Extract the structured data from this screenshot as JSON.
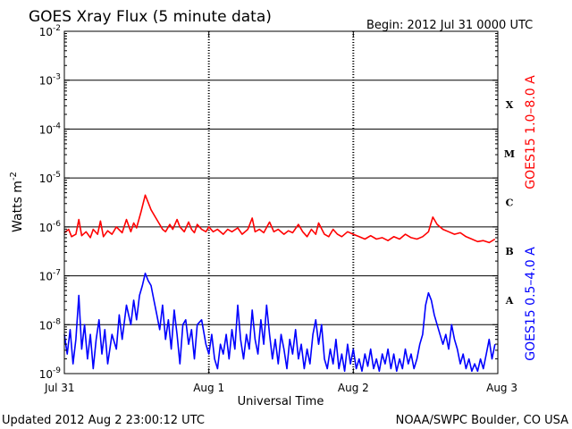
{
  "chart_data": {
    "type": "line",
    "title": "GOES Xray Flux (5 minute data)",
    "begin_label": "Begin:  2012 Jul 31 0000 UTC",
    "xlabel": "Universal Time",
    "ylabel_base": "Watts m",
    "ylabel_exp": "-2",
    "x_range_days": [
      0,
      3
    ],
    "x_ticks": [
      {
        "label": "Jul 31",
        "day": 0
      },
      {
        "label": "Aug 1",
        "day": 1
      },
      {
        "label": "Aug 2",
        "day": 2
      },
      {
        "label": "Aug 3",
        "day": 3
      }
    ],
    "y_scale": "log",
    "ylim_exponent": [
      -9,
      -2
    ],
    "y_ticks": [
      {
        "base": "10",
        "exp": "-2",
        "value": -2
      },
      {
        "base": "10",
        "exp": "-3",
        "value": -3
      },
      {
        "base": "10",
        "exp": "-4",
        "value": -4
      },
      {
        "base": "10",
        "exp": "-5",
        "value": -5
      },
      {
        "base": "10",
        "exp": "-6",
        "value": -6
      },
      {
        "base": "10",
        "exp": "-7",
        "value": -7
      },
      {
        "base": "10",
        "exp": "-8",
        "value": -8
      },
      {
        "base": "10",
        "exp": "-9",
        "value": -9
      }
    ],
    "flare_classes": [
      {
        "label": "X",
        "center": -3.5
      },
      {
        "label": "M",
        "center": -4.5
      },
      {
        "label": "C",
        "center": -5.5
      },
      {
        "label": "B",
        "center": -6.5
      },
      {
        "label": "A",
        "center": -7.5
      }
    ],
    "series": [
      {
        "name": "GOES15 1.0–8.0 A",
        "color": "#ff0000",
        "points": [
          [
            0.0,
            -6.12
          ],
          [
            0.03,
            -6.05
          ],
          [
            0.05,
            -6.2
          ],
          [
            0.08,
            -6.15
          ],
          [
            0.1,
            -5.85
          ],
          [
            0.12,
            -6.18
          ],
          [
            0.15,
            -6.1
          ],
          [
            0.18,
            -6.22
          ],
          [
            0.2,
            -6.05
          ],
          [
            0.23,
            -6.15
          ],
          [
            0.25,
            -5.88
          ],
          [
            0.27,
            -6.2
          ],
          [
            0.3,
            -6.08
          ],
          [
            0.33,
            -6.15
          ],
          [
            0.36,
            -6.0
          ],
          [
            0.4,
            -6.12
          ],
          [
            0.43,
            -5.85
          ],
          [
            0.46,
            -6.1
          ],
          [
            0.48,
            -5.92
          ],
          [
            0.5,
            -6.02
          ],
          [
            0.53,
            -5.7
          ],
          [
            0.56,
            -5.35
          ],
          [
            0.58,
            -5.5
          ],
          [
            0.6,
            -5.65
          ],
          [
            0.63,
            -5.8
          ],
          [
            0.66,
            -5.95
          ],
          [
            0.68,
            -6.05
          ],
          [
            0.7,
            -6.1
          ],
          [
            0.73,
            -5.95
          ],
          [
            0.75,
            -6.05
          ],
          [
            0.78,
            -5.85
          ],
          [
            0.8,
            -6.0
          ],
          [
            0.83,
            -6.1
          ],
          [
            0.86,
            -5.9
          ],
          [
            0.88,
            -6.05
          ],
          [
            0.9,
            -6.12
          ],
          [
            0.92,
            -5.95
          ],
          [
            0.95,
            -6.05
          ],
          [
            0.98,
            -6.1
          ],
          [
            1.0,
            -6.0
          ],
          [
            1.03,
            -6.1
          ],
          [
            1.06,
            -6.05
          ],
          [
            1.1,
            -6.15
          ],
          [
            1.13,
            -6.05
          ],
          [
            1.16,
            -6.1
          ],
          [
            1.2,
            -6.02
          ],
          [
            1.23,
            -6.15
          ],
          [
            1.27,
            -6.05
          ],
          [
            1.3,
            -5.82
          ],
          [
            1.32,
            -6.1
          ],
          [
            1.35,
            -6.05
          ],
          [
            1.38,
            -6.12
          ],
          [
            1.42,
            -5.9
          ],
          [
            1.45,
            -6.1
          ],
          [
            1.48,
            -6.05
          ],
          [
            1.52,
            -6.15
          ],
          [
            1.55,
            -6.08
          ],
          [
            1.58,
            -6.12
          ],
          [
            1.62,
            -5.95
          ],
          [
            1.65,
            -6.1
          ],
          [
            1.68,
            -6.2
          ],
          [
            1.71,
            -6.05
          ],
          [
            1.74,
            -6.15
          ],
          [
            1.76,
            -5.92
          ],
          [
            1.8,
            -6.15
          ],
          [
            1.83,
            -6.2
          ],
          [
            1.86,
            -6.05
          ],
          [
            1.89,
            -6.15
          ],
          [
            1.92,
            -6.2
          ],
          [
            1.96,
            -6.1
          ],
          [
            2.0,
            -6.15
          ],
          [
            2.04,
            -6.2
          ],
          [
            2.08,
            -6.25
          ],
          [
            2.12,
            -6.18
          ],
          [
            2.16,
            -6.25
          ],
          [
            2.2,
            -6.22
          ],
          [
            2.24,
            -6.28
          ],
          [
            2.28,
            -6.2
          ],
          [
            2.32,
            -6.25
          ],
          [
            2.36,
            -6.15
          ],
          [
            2.4,
            -6.22
          ],
          [
            2.44,
            -6.25
          ],
          [
            2.48,
            -6.2
          ],
          [
            2.52,
            -6.1
          ],
          [
            2.55,
            -5.8
          ],
          [
            2.58,
            -5.95
          ],
          [
            2.62,
            -6.05
          ],
          [
            2.66,
            -6.1
          ],
          [
            2.7,
            -6.15
          ],
          [
            2.74,
            -6.12
          ],
          [
            2.78,
            -6.2
          ],
          [
            2.82,
            -6.25
          ],
          [
            2.86,
            -6.3
          ],
          [
            2.9,
            -6.28
          ],
          [
            2.94,
            -6.32
          ],
          [
            2.98,
            -6.25
          ]
        ]
      },
      {
        "name": "GOES15 0.5–4.0 A",
        "color": "#0000ff",
        "points": [
          [
            0.0,
            -8.2
          ],
          [
            0.02,
            -8.6
          ],
          [
            0.04,
            -8.1
          ],
          [
            0.06,
            -8.8
          ],
          [
            0.08,
            -8.3
          ],
          [
            0.1,
            -7.4
          ],
          [
            0.12,
            -8.5
          ],
          [
            0.14,
            -8.0
          ],
          [
            0.16,
            -8.7
          ],
          [
            0.18,
            -8.2
          ],
          [
            0.2,
            -8.9
          ],
          [
            0.22,
            -8.3
          ],
          [
            0.24,
            -7.9
          ],
          [
            0.26,
            -8.6
          ],
          [
            0.28,
            -8.1
          ],
          [
            0.3,
            -8.8
          ],
          [
            0.33,
            -8.2
          ],
          [
            0.36,
            -8.5
          ],
          [
            0.38,
            -7.8
          ],
          [
            0.4,
            -8.3
          ],
          [
            0.43,
            -7.6
          ],
          [
            0.46,
            -8.0
          ],
          [
            0.48,
            -7.5
          ],
          [
            0.5,
            -7.9
          ],
          [
            0.52,
            -7.4
          ],
          [
            0.54,
            -7.2
          ],
          [
            0.56,
            -6.95
          ],
          [
            0.58,
            -7.1
          ],
          [
            0.6,
            -7.2
          ],
          [
            0.62,
            -7.5
          ],
          [
            0.64,
            -7.8
          ],
          [
            0.66,
            -8.1
          ],
          [
            0.68,
            -7.6
          ],
          [
            0.7,
            -8.3
          ],
          [
            0.72,
            -7.9
          ],
          [
            0.74,
            -8.5
          ],
          [
            0.76,
            -7.7
          ],
          [
            0.78,
            -8.2
          ],
          [
            0.8,
            -8.8
          ],
          [
            0.82,
            -8.0
          ],
          [
            0.84,
            -7.9
          ],
          [
            0.86,
            -8.4
          ],
          [
            0.88,
            -8.1
          ],
          [
            0.9,
            -8.7
          ],
          [
            0.92,
            -8.0
          ],
          [
            0.95,
            -7.9
          ],
          [
            0.98,
            -8.4
          ],
          [
            1.0,
            -8.6
          ],
          [
            1.02,
            -8.2
          ],
          [
            1.04,
            -8.7
          ],
          [
            1.06,
            -8.9
          ],
          [
            1.08,
            -8.4
          ],
          [
            1.1,
            -8.6
          ],
          [
            1.12,
            -8.2
          ],
          [
            1.14,
            -8.7
          ],
          [
            1.16,
            -8.1
          ],
          [
            1.18,
            -8.5
          ],
          [
            1.2,
            -7.6
          ],
          [
            1.22,
            -8.3
          ],
          [
            1.24,
            -8.7
          ],
          [
            1.26,
            -8.2
          ],
          [
            1.28,
            -8.5
          ],
          [
            1.3,
            -7.7
          ],
          [
            1.32,
            -8.3
          ],
          [
            1.34,
            -8.6
          ],
          [
            1.36,
            -7.9
          ],
          [
            1.38,
            -8.4
          ],
          [
            1.4,
            -7.6
          ],
          [
            1.42,
            -8.2
          ],
          [
            1.44,
            -8.7
          ],
          [
            1.46,
            -8.3
          ],
          [
            1.48,
            -8.8
          ],
          [
            1.5,
            -8.2
          ],
          [
            1.52,
            -8.5
          ],
          [
            1.54,
            -8.9
          ],
          [
            1.56,
            -8.3
          ],
          [
            1.58,
            -8.6
          ],
          [
            1.6,
            -8.1
          ],
          [
            1.62,
            -8.7
          ],
          [
            1.64,
            -8.4
          ],
          [
            1.66,
            -8.9
          ],
          [
            1.68,
            -8.5
          ],
          [
            1.7,
            -8.8
          ],
          [
            1.72,
            -8.2
          ],
          [
            1.74,
            -7.9
          ],
          [
            1.76,
            -8.4
          ],
          [
            1.78,
            -8.0
          ],
          [
            1.8,
            -8.7
          ],
          [
            1.82,
            -8.9
          ],
          [
            1.84,
            -8.5
          ],
          [
            1.86,
            -8.8
          ],
          [
            1.88,
            -8.3
          ],
          [
            1.9,
            -8.9
          ],
          [
            1.92,
            -8.6
          ],
          [
            1.94,
            -8.95
          ],
          [
            1.96,
            -8.4
          ],
          [
            1.98,
            -8.8
          ],
          [
            2.0,
            -8.5
          ],
          [
            2.02,
            -8.9
          ],
          [
            2.04,
            -8.7
          ],
          [
            2.06,
            -8.95
          ],
          [
            2.08,
            -8.6
          ],
          [
            2.1,
            -8.85
          ],
          [
            2.12,
            -8.5
          ],
          [
            2.14,
            -8.9
          ],
          [
            2.16,
            -8.7
          ],
          [
            2.18,
            -8.95
          ],
          [
            2.2,
            -8.6
          ],
          [
            2.22,
            -8.8
          ],
          [
            2.24,
            -8.5
          ],
          [
            2.26,
            -8.9
          ],
          [
            2.28,
            -8.6
          ],
          [
            2.3,
            -8.95
          ],
          [
            2.32,
            -8.7
          ],
          [
            2.34,
            -8.9
          ],
          [
            2.36,
            -8.5
          ],
          [
            2.38,
            -8.8
          ],
          [
            2.4,
            -8.6
          ],
          [
            2.42,
            -8.9
          ],
          [
            2.44,
            -8.7
          ],
          [
            2.46,
            -8.4
          ],
          [
            2.48,
            -8.2
          ],
          [
            2.5,
            -7.6
          ],
          [
            2.52,
            -7.35
          ],
          [
            2.54,
            -7.5
          ],
          [
            2.56,
            -7.8
          ],
          [
            2.58,
            -8.0
          ],
          [
            2.6,
            -8.2
          ],
          [
            2.62,
            -8.4
          ],
          [
            2.64,
            -8.2
          ],
          [
            2.66,
            -8.5
          ],
          [
            2.68,
            -8.0
          ],
          [
            2.7,
            -8.3
          ],
          [
            2.72,
            -8.5
          ],
          [
            2.74,
            -8.8
          ],
          [
            2.76,
            -8.6
          ],
          [
            2.78,
            -8.9
          ],
          [
            2.8,
            -8.7
          ],
          [
            2.82,
            -8.95
          ],
          [
            2.84,
            -8.8
          ],
          [
            2.86,
            -8.95
          ],
          [
            2.88,
            -8.7
          ],
          [
            2.9,
            -8.9
          ],
          [
            2.92,
            -8.6
          ],
          [
            2.94,
            -8.3
          ],
          [
            2.96,
            -8.7
          ],
          [
            2.98,
            -8.4
          ]
        ]
      }
    ]
  },
  "footer": {
    "updated": "Updated 2012 Aug  2 23:00:12 UTC",
    "credit": "NOAA/SWPC Boulder, CO USA"
  }
}
